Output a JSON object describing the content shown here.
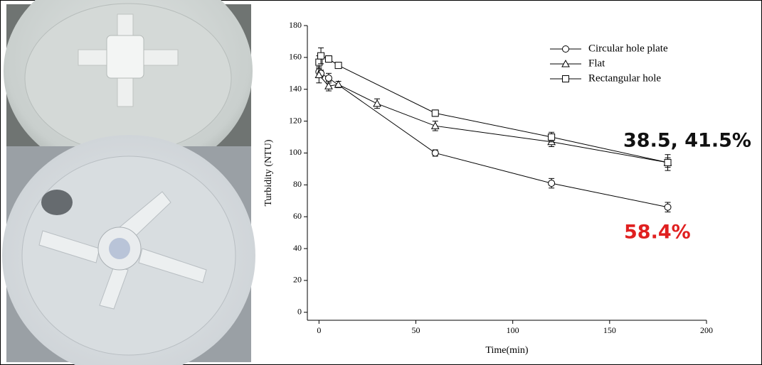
{
  "chart_data": {
    "type": "line",
    "x_label": "Time(min)",
    "y_label": "Turbidity (NTU)",
    "xlim": [
      -6,
      200
    ],
    "xticks": [
      0,
      50,
      100,
      150,
      200
    ],
    "ylim": [
      -5,
      180
    ],
    "yticks": [
      0,
      20,
      40,
      60,
      80,
      100,
      120,
      140,
      160,
      180
    ],
    "legend": "upper right",
    "series": [
      {
        "name": "Circular hole plate",
        "marker": "circle",
        "color": "#000000",
        "x": [
          0,
          1,
          5,
          60,
          120,
          180
        ],
        "values": [
          151,
          150,
          147,
          100,
          81,
          66
        ],
        "errors": [
          3,
          2,
          3,
          2,
          3,
          3
        ]
      },
      {
        "name": "Flat",
        "marker": "triangle",
        "color": "#000000",
        "x": [
          0,
          5,
          10,
          30,
          60,
          120,
          180
        ],
        "values": [
          149,
          142,
          143,
          131,
          117,
          107,
          94
        ],
        "errors": [
          5,
          3,
          2,
          3,
          3,
          3,
          3
        ]
      },
      {
        "name": "Rectangular hole",
        "marker": "square",
        "color": "#000000",
        "x": [
          0,
          1,
          5,
          10,
          60,
          120,
          180
        ],
        "values": [
          157,
          161,
          159,
          155,
          125,
          110,
          94
        ],
        "errors": [
          4,
          5,
          2,
          1,
          2,
          3,
          5
        ]
      }
    ],
    "annotations": [
      {
        "text": "38.5, 41.5%",
        "color": "#111111"
      },
      {
        "text": "58.4%",
        "color": "#e02020"
      }
    ]
  }
}
